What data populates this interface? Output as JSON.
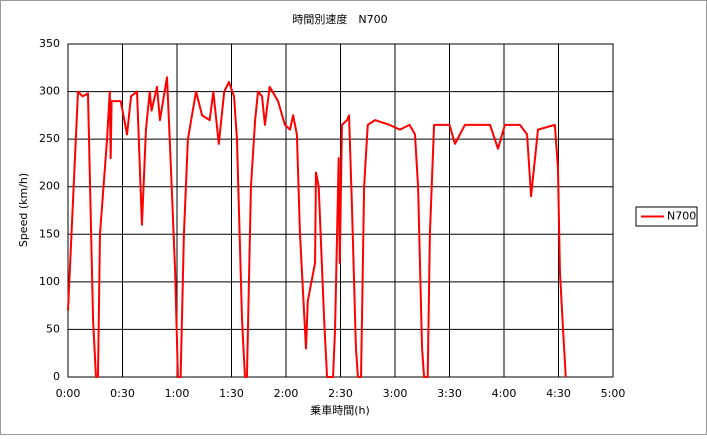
{
  "chart_data": {
    "type": "line",
    "title": "時間別速度　N700",
    "x_label": "乗車時間(h)",
    "y_label": "Speed (km/h)",
    "x": [
      0,
      5.5,
      8,
      11,
      13.8,
      15.4,
      16.5,
      17.6,
      21.5,
      23,
      23.5,
      24,
      29,
      32.5,
      34.7,
      38,
      40.7,
      42.9,
      45,
      46,
      49,
      50.6,
      54.5,
      56,
      59,
      60.5,
      62,
      63.8,
      66,
      70.5,
      73.8,
      78,
      80,
      83,
      86,
      88.6,
      91.4,
      93,
      95.8,
      97.4,
      98.5,
      100.7,
      103,
      104.6,
      106.8,
      108.4,
      111,
      115.6,
      119.4,
      122.2,
      123.9,
      126,
      127.7,
      131,
      132,
      136,
      136.5,
      138,
      141,
      142.6,
      145.9,
      147,
      149,
      149.6,
      150.8,
      153.6,
      154.7,
      156.3,
      158.5,
      159.6,
      161.3,
      163,
      165,
      169,
      177,
      182.7,
      188,
      191,
      192.7,
      194.9,
      196,
      198,
      199.2,
      201.5,
      210,
      213,
      218.5,
      232.3,
      236.7,
      240.5,
      248.8,
      252.7,
      254.9,
      258.7,
      268,
      269.7,
      270.8,
      272.5,
      274
    ],
    "series": [
      {
        "name": "N700",
        "color": "#ff0000",
        "values": [
          70,
          300,
          295,
          298,
          60,
          0,
          0,
          150,
          250,
          300,
          230,
          290,
          290,
          255,
          295,
          300,
          160,
          260,
          300,
          280,
          305,
          270,
          315,
          250,
          110,
          0,
          0,
          150,
          250,
          300,
          275,
          270,
          300,
          245,
          300,
          310,
          295,
          250,
          60,
          0,
          0,
          200,
          270,
          300,
          295,
          265,
          305,
          290,
          265,
          260,
          275,
          255,
          150,
          30,
          80,
          120,
          215,
          200,
          60,
          0,
          0,
          50,
          230,
          120,
          265,
          270,
          275,
          180,
          30,
          0,
          0,
          200,
          265,
          270,
          265,
          260,
          265,
          255,
          200,
          30,
          0,
          0,
          150,
          265,
          265,
          245,
          265,
          265,
          240,
          265,
          265,
          255,
          190,
          260,
          265,
          220,
          110,
          50,
          0
        ]
      }
    ],
    "xlim": [
      0,
      300
    ],
    "xticks": [
      {
        "value": 0,
        "label": "0:00"
      },
      {
        "value": 30,
        "label": "0:30"
      },
      {
        "value": 60,
        "label": "1:00"
      },
      {
        "value": 90,
        "label": "1:30"
      },
      {
        "value": 120,
        "label": "2:00"
      },
      {
        "value": 150,
        "label": "2:30"
      },
      {
        "value": 180,
        "label": "3:00"
      },
      {
        "value": 210,
        "label": "3:30"
      },
      {
        "value": 240,
        "label": "4:00"
      },
      {
        "value": 270,
        "label": "4:30"
      },
      {
        "value": 300,
        "label": "5:00"
      }
    ],
    "ylim": [
      0,
      350
    ],
    "yticks": [
      0,
      50,
      100,
      150,
      200,
      250,
      300,
      350
    ],
    "grid": true,
    "legend": "right"
  }
}
